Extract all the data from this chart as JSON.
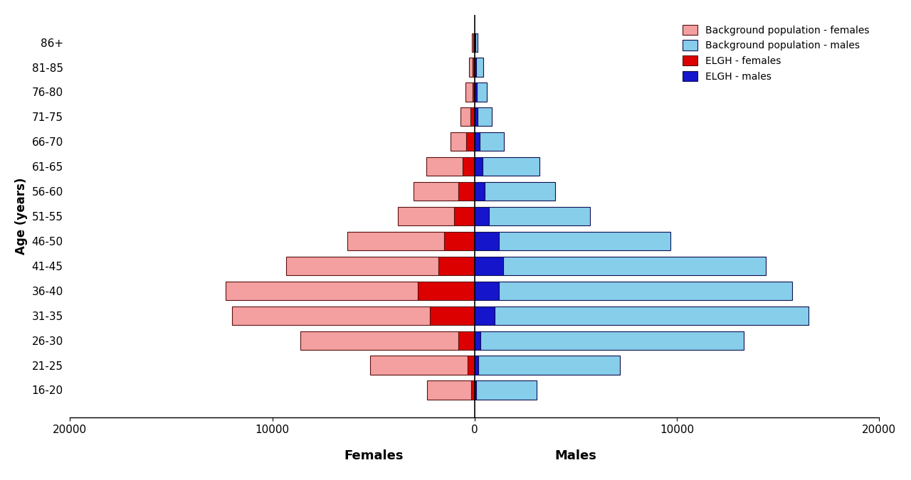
{
  "age_groups": [
    "16-20",
    "21-25",
    "26-30",
    "31-35",
    "36-40",
    "41-45",
    "46-50",
    "51-55",
    "56-60",
    "61-65",
    "66-70",
    "71-75",
    "76-80",
    "81-85",
    "86+"
  ],
  "bg_females": [
    2200,
    4800,
    7800,
    9800,
    9500,
    7500,
    4800,
    2800,
    2200,
    1800,
    800,
    500,
    350,
    200,
    80
  ],
  "bg_males": [
    3000,
    7000,
    13000,
    15500,
    14500,
    13000,
    8500,
    5000,
    3500,
    2800,
    1200,
    700,
    500,
    350,
    100
  ],
  "elgh_females": [
    150,
    350,
    800,
    2200,
    2800,
    1800,
    1500,
    1000,
    800,
    600,
    400,
    200,
    100,
    80,
    50
  ],
  "elgh_males": [
    80,
    200,
    300,
    1000,
    1200,
    1400,
    1200,
    700,
    500,
    400,
    250,
    150,
    100,
    80,
    50
  ],
  "color_bg_females": "#F4A0A0",
  "color_bg_males": "#87CEEB",
  "color_elgh_females": "#DD0000",
  "color_elgh_males": "#1515CC",
  "edgecolor_red": "#5a1010",
  "edgecolor_blue": "#101050",
  "xlabel_females": "Females",
  "xlabel_males": "Males",
  "ylabel": "Age (years)",
  "xlim": [
    -20000,
    20000
  ],
  "xticks": [
    -20000,
    -10000,
    0,
    10000,
    20000
  ],
  "xticklabels": [
    "20000",
    "10000",
    "0",
    "10000",
    "20000"
  ],
  "legend_labels": [
    "Background population - females",
    "Background population - males",
    "ELGH - females",
    "ELGH - males"
  ],
  "bar_height": 0.75
}
